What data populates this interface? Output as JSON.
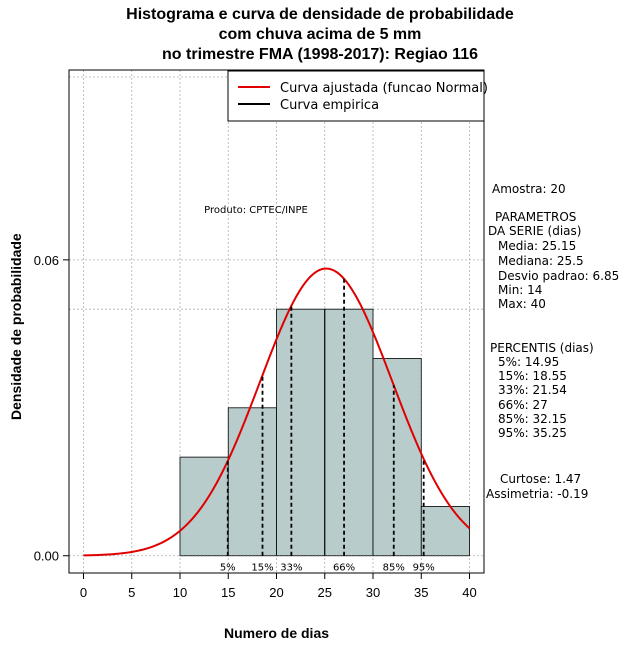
{
  "title_lines": [
    "Histograma e curva de densidade de probabilidade",
    "com chuva acima de 5 mm",
    "no trimestre FMA (1998-2017): Regiao 116"
  ],
  "product_label": "Produto: CPTEC/INPE",
  "stats": {
    "amostra": "Amostra: 20",
    "param_header": [
      "PARAMETROS",
      "DA SERIE (dias)"
    ],
    "params": [
      "Media: 25.15",
      "Mediana: 25.5",
      "Desvio padrao: 6.85",
      "Min: 14",
      "Max: 40"
    ],
    "percentis_header": "PERCENTIS (dias)",
    "percentis": [
      "5%: 14.95",
      "15%: 18.55",
      "33%: 21.54",
      "66%: 27",
      "85%: 32.15",
      "95%: 35.25"
    ],
    "curtose": "Curtose: 1.47",
    "assimetria": "Assimetria: -0.19"
  },
  "colors": {
    "bar_fill": "#b8cccc",
    "normal_curve": "#e00000",
    "empirical": "#000000",
    "grid": "#b0b0b0"
  },
  "chart_data": {
    "type": "bar",
    "xlabel": "Numero de dias",
    "ylabel": "Densidade de probabilidade",
    "xlim": [
      -1.5,
      41.5
    ],
    "ylim": [
      -0.0035,
      0.0985
    ],
    "x_ticks": [
      0,
      5,
      10,
      15,
      20,
      25,
      30,
      35,
      40
    ],
    "y_ticks": [
      0.0,
      0.06
    ],
    "y_tick_labels": [
      "0.00",
      "0.06"
    ],
    "bins": [
      [
        10,
        15
      ],
      [
        15,
        20
      ],
      [
        20,
        25
      ],
      [
        25,
        30
      ],
      [
        30,
        35
      ],
      [
        35,
        40
      ]
    ],
    "densities": [
      0.02,
      0.03,
      0.05,
      0.05,
      0.04,
      0.01
    ],
    "grid": true,
    "legend": {
      "position": "top-right",
      "entries": [
        "Curva ajustada (funcao Normal)",
        "Curva empirica"
      ]
    },
    "normal_curve": {
      "mean": 25.15,
      "sd": 6.85,
      "x_range": [
        0,
        40
      ]
    },
    "empirical_line_x": 25,
    "percentiles": [
      {
        "label": "5%",
        "x": 14.95
      },
      {
        "label": "15%",
        "x": 18.55
      },
      {
        "label": "33%",
        "x": 21.54
      },
      {
        "label": "66%",
        "x": 27
      },
      {
        "label": "85%",
        "x": 32.15
      },
      {
        "label": "95%",
        "x": 35.25
      }
    ],
    "reference_lines": {
      "vertical_x": 35.25
    }
  }
}
